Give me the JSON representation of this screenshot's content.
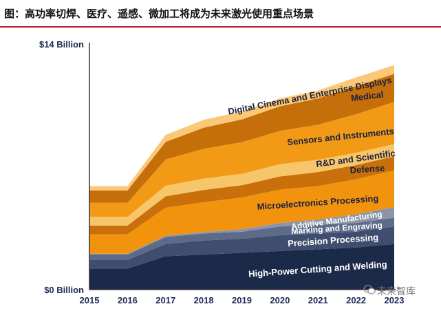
{
  "header": {
    "title": "图：高功率切焊、医疗、遥感、微加工将成为未来激光使用重点场景"
  },
  "watermark": {
    "text": "未来智库",
    "icon": "wechat-icon"
  },
  "chart_data": {
    "type": "area",
    "stacked": true,
    "title": "",
    "xlabel": "",
    "ylabel": "",
    "x": [
      2015,
      2016,
      2017,
      2018,
      2019,
      2020,
      2021,
      2022,
      2023
    ],
    "ylim": [
      0,
      14
    ],
    "y_tick_labels": [
      {
        "value": 14,
        "label": "$14 Billion"
      },
      {
        "value": 0,
        "label": "$0 Billion"
      }
    ],
    "grid": false,
    "legend": "none",
    "series": [
      {
        "name": "High-Power Cutting and Welding",
        "color": "#1c2a4a",
        "values": [
          1.2,
          1.2,
          1.9,
          2.0,
          2.1,
          2.2,
          2.3,
          2.4,
          2.6
        ]
      },
      {
        "name": "Precision Processing",
        "color": "#3f4e6e",
        "values": [
          0.5,
          0.5,
          0.7,
          0.8,
          0.8,
          0.9,
          0.9,
          0.9,
          1.0
        ]
      },
      {
        "name": "Marking and Engraving",
        "color": "#5d6b88",
        "values": [
          0.3,
          0.3,
          0.4,
          0.4,
          0.4,
          0.5,
          0.5,
          0.5,
          0.5
        ]
      },
      {
        "name": "Additive Manufacturing",
        "color": "#8c95a8",
        "values": [
          0.05,
          0.05,
          0.07,
          0.08,
          0.15,
          0.2,
          0.3,
          0.5,
          0.6
        ]
      },
      {
        "name": "Microelectronics Processing",
        "color": "#f2930e",
        "values": [
          1.1,
          1.1,
          1.6,
          1.7,
          1.8,
          1.9,
          1.9,
          2.0,
          2.1
        ]
      },
      {
        "name": "Defense",
        "color": "#c9700a",
        "values": [
          0.5,
          0.5,
          0.65,
          0.7,
          0.7,
          0.75,
          0.8,
          0.8,
          0.8
        ]
      },
      {
        "name": "R&D and Scientific",
        "color": "#f8c66a",
        "values": [
          0.5,
          0.5,
          0.6,
          0.65,
          0.65,
          0.7,
          0.7,
          0.7,
          0.7
        ]
      },
      {
        "name": "Sensors and Instruments",
        "color": "#f29a15",
        "values": [
          0.8,
          0.8,
          1.5,
          1.7,
          1.8,
          1.9,
          2.0,
          2.2,
          2.4
        ]
      },
      {
        "name": "Medical",
        "color": "#c46f0a",
        "values": [
          0.7,
          0.7,
          1.0,
          1.2,
          1.3,
          1.4,
          1.5,
          1.6,
          1.6
        ]
      },
      {
        "name": "Digital Cinema and Enterprise Displays",
        "color": "#fbc877",
        "values": [
          0.25,
          0.25,
          0.4,
          0.45,
          0.45,
          0.45,
          0.45,
          0.5,
          0.5
        ]
      }
    ]
  }
}
